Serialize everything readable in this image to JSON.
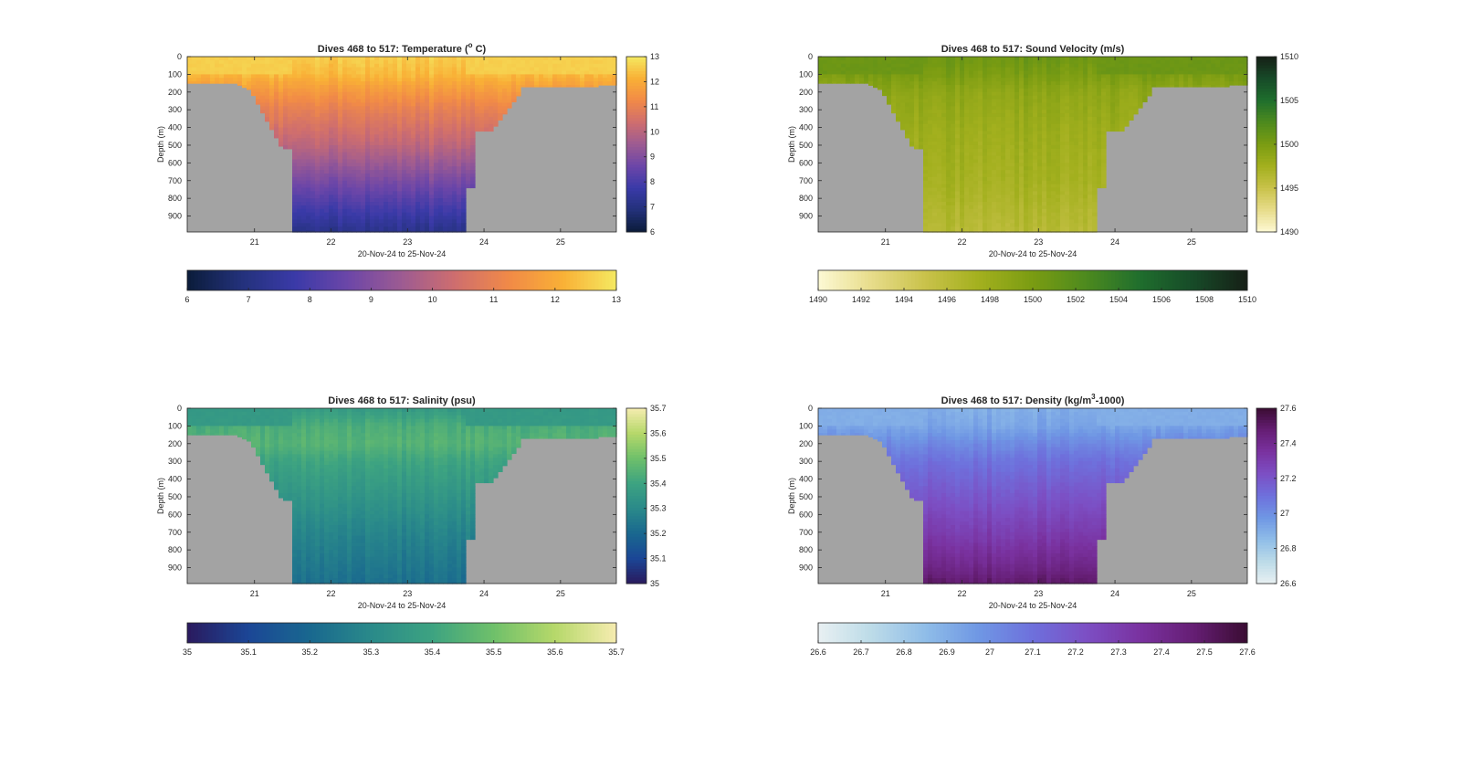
{
  "chart_data": [
    {
      "type": "heatmap",
      "title": "Dives 468 to 517: Temperature (",
      "title_sup": "o",
      "title_tail": " C)",
      "xlabel": "20-Nov-24 to 25-Nov-24",
      "ylabel": "Depth (m)",
      "x_ticks": [
        "21",
        "22",
        "23",
        "24",
        "25"
      ],
      "x_range": [
        20.12,
        25.73
      ],
      "y_ticks": [
        "0",
        "100",
        "200",
        "300",
        "400",
        "500",
        "600",
        "700",
        "800",
        "900"
      ],
      "y_range": [
        0,
        990
      ],
      "colorbar_ticks": [
        "13",
        "12",
        "11",
        "10",
        "9",
        "8",
        "7",
        "6"
      ],
      "horizontal_colorbar_ticks": [
        "6",
        "7",
        "8",
        "9",
        "10",
        "11",
        "12",
        "13"
      ],
      "clim": [
        6,
        13
      ],
      "colormap": [
        "#0b1c3a",
        "#23317a",
        "#3a3aa8",
        "#6c46a8",
        "#9d5b92",
        "#cf6e6e",
        "#f18a47",
        "#f9b036",
        "#f4e961"
      ],
      "profile": {
        "depth": [
          0,
          100,
          200,
          300,
          500,
          700,
          900,
          990
        ],
        "value": [
          12.6,
          12.3,
          11.6,
          11.0,
          10.1,
          8.9,
          7.7,
          7.2
        ]
      },
      "land_color": "#a3a3a3"
    },
    {
      "type": "heatmap",
      "title": "Dives 468 to 517: Sound Velocity (m/s)",
      "xlabel": "20-Nov-24 to 25-Nov-24",
      "ylabel": "Depth (m)",
      "x_ticks": [
        "21",
        "22",
        "23",
        "24",
        "25"
      ],
      "x_range": [
        20.12,
        25.73
      ],
      "y_ticks": [
        "0",
        "100",
        "200",
        "300",
        "400",
        "500",
        "600",
        "700",
        "800",
        "900"
      ],
      "y_range": [
        0,
        990
      ],
      "colorbar_ticks": [
        "1510",
        "1505",
        "1500",
        "1495",
        "1490"
      ],
      "horizontal_colorbar_ticks": [
        "1490",
        "1492",
        "1494",
        "1496",
        "1498",
        "1500",
        "1502",
        "1504",
        "1506",
        "1508",
        "1510"
      ],
      "clim": [
        1490,
        1510
      ],
      "colormap": [
        "#fdf9d4",
        "#e7dc8a",
        "#c9c24a",
        "#a3b01e",
        "#7a9c12",
        "#4d8a1e",
        "#1f6e2d",
        "#174a28",
        "#161f16"
      ],
      "profile": {
        "depth": [
          0,
          100,
          200,
          400,
          700,
          990
        ],
        "value": [
          1500.8,
          1500.0,
          1498.8,
          1498.0,
          1497.4,
          1496.2
        ]
      },
      "land_color": "#a3a3a3"
    },
    {
      "type": "heatmap",
      "title": "Dives 468 to 517: Salinity (psu)",
      "xlabel": "20-Nov-24 to 25-Nov-24",
      "ylabel": "Depth (m)",
      "x_ticks": [
        "21",
        "22",
        "23",
        "24",
        "25"
      ],
      "x_range": [
        20.12,
        25.73
      ],
      "y_ticks": [
        "0",
        "100",
        "200",
        "300",
        "400",
        "500",
        "600",
        "700",
        "800",
        "900"
      ],
      "y_range": [
        0,
        990
      ],
      "colorbar_ticks": [
        "35.7",
        "35.6",
        "35.5",
        "35.4",
        "35.3",
        "35.2",
        "35.1",
        "35"
      ],
      "horizontal_colorbar_ticks": [
        "35",
        "35.1",
        "35.2",
        "35.3",
        "35.4",
        "35.5",
        "35.6",
        "35.7"
      ],
      "clim": [
        35,
        35.7
      ],
      "colormap": [
        "#2a1a5e",
        "#1b4696",
        "#19688f",
        "#2a8a8a",
        "#3da381",
        "#6fc06a",
        "#b6d86a",
        "#f6ecb0"
      ],
      "profile": {
        "depth": [
          0,
          100,
          200,
          300,
          500,
          700,
          900,
          990
        ],
        "value": [
          35.36,
          35.43,
          35.45,
          35.4,
          35.34,
          35.28,
          35.24,
          35.22
        ]
      },
      "land_color": "#a3a3a3"
    },
    {
      "type": "heatmap",
      "title": "Dives 468 to 517: Density (kg/m",
      "title_sup": "3",
      "title_tail": "-1000)",
      "xlabel": "20-Nov-24 to 25-Nov-24",
      "ylabel": "Depth (m)",
      "x_ticks": [
        "21",
        "22",
        "23",
        "24",
        "25"
      ],
      "x_range": [
        20.12,
        25.73
      ],
      "y_ticks": [
        "0",
        "100",
        "200",
        "300",
        "400",
        "500",
        "600",
        "700",
        "800",
        "900"
      ],
      "y_range": [
        0,
        990
      ],
      "colorbar_ticks": [
        "27.6",
        "27.4",
        "27.2",
        "27",
        "26.8",
        "26.6"
      ],
      "horizontal_colorbar_ticks": [
        "26.6",
        "26.7",
        "26.8",
        "26.9",
        "27",
        "27.1",
        "27.2",
        "27.3",
        "27.4",
        "27.5",
        "27.6"
      ],
      "clim": [
        26.6,
        27.6
      ],
      "colormap": [
        "#e8f0f2",
        "#bcdbe8",
        "#8fbde8",
        "#6f97e4",
        "#6e70dc",
        "#7c4fc4",
        "#7a32a0",
        "#651e74",
        "#3a0c32"
      ],
      "profile": {
        "depth": [
          0,
          100,
          200,
          300,
          500,
          700,
          900,
          990
        ],
        "value": [
          26.9,
          26.93,
          27.02,
          27.1,
          27.2,
          27.3,
          27.42,
          27.5
        ]
      },
      "land_color": "#a3a3a3"
    }
  ]
}
